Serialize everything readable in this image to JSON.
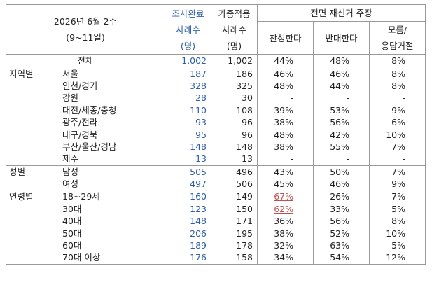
{
  "header": {
    "period": [
      "2026년 6월 2주",
      "(9~11일)"
    ],
    "completed": [
      "조사완료",
      "사례수",
      "(명)"
    ],
    "weighted": [
      "가중적용",
      "사례수",
      "(명)"
    ],
    "question": "전면 재선거 주장",
    "answers": [
      [
        "찬성한다"
      ],
      [
        "반대한다"
      ],
      [
        "모름/",
        "응답거절"
      ]
    ]
  },
  "total": [
    "전체",
    "1,002",
    "1,002",
    "44%",
    "48%",
    "8%"
  ],
  "groups": [
    {
      "label": "지역별",
      "rows": [
        [
          "서울",
          "187",
          "186",
          "46%",
          "46%",
          "8%"
        ],
        [
          "인천/경기",
          "328",
          "325",
          "48%",
          "44%",
          "8%"
        ],
        [
          "강원",
          "28",
          "30",
          "-",
          "-",
          "-"
        ],
        [
          "대전/세종/충청",
          "110",
          "108",
          "39%",
          "53%",
          "9%"
        ],
        [
          "광주/전라",
          "93",
          "96",
          "38%",
          "56%",
          "6%"
        ],
        [
          "대구/경북",
          "95",
          "96",
          "48%",
          "42%",
          "10%"
        ],
        [
          "부산/울산/경남",
          "148",
          "148",
          "38%",
          "55%",
          "7%"
        ],
        [
          "제주",
          "13",
          "13",
          "-",
          "-",
          "-"
        ]
      ]
    },
    {
      "label": "성별",
      "rows": [
        [
          "남성",
          "505",
          "496",
          "43%",
          "50%",
          "7%"
        ],
        [
          "여성",
          "497",
          "506",
          "45%",
          "46%",
          "9%"
        ]
      ]
    },
    {
      "label": "연령별",
      "rows": [
        [
          "18~29세",
          "160",
          "149",
          "67%",
          "26%",
          "7%"
        ],
        [
          "30대",
          "123",
          "150",
          "62%",
          "33%",
          "5%"
        ],
        [
          "40대",
          "148",
          "171",
          "36%",
          "56%",
          "8%"
        ],
        [
          "50대",
          "206",
          "195",
          "38%",
          "52%",
          "10%"
        ],
        [
          "60대",
          "189",
          "178",
          "32%",
          "63%",
          "5%"
        ],
        [
          "70대 이상",
          "176",
          "158",
          "34%",
          "54%",
          "12%"
        ]
      ]
    }
  ]
}
